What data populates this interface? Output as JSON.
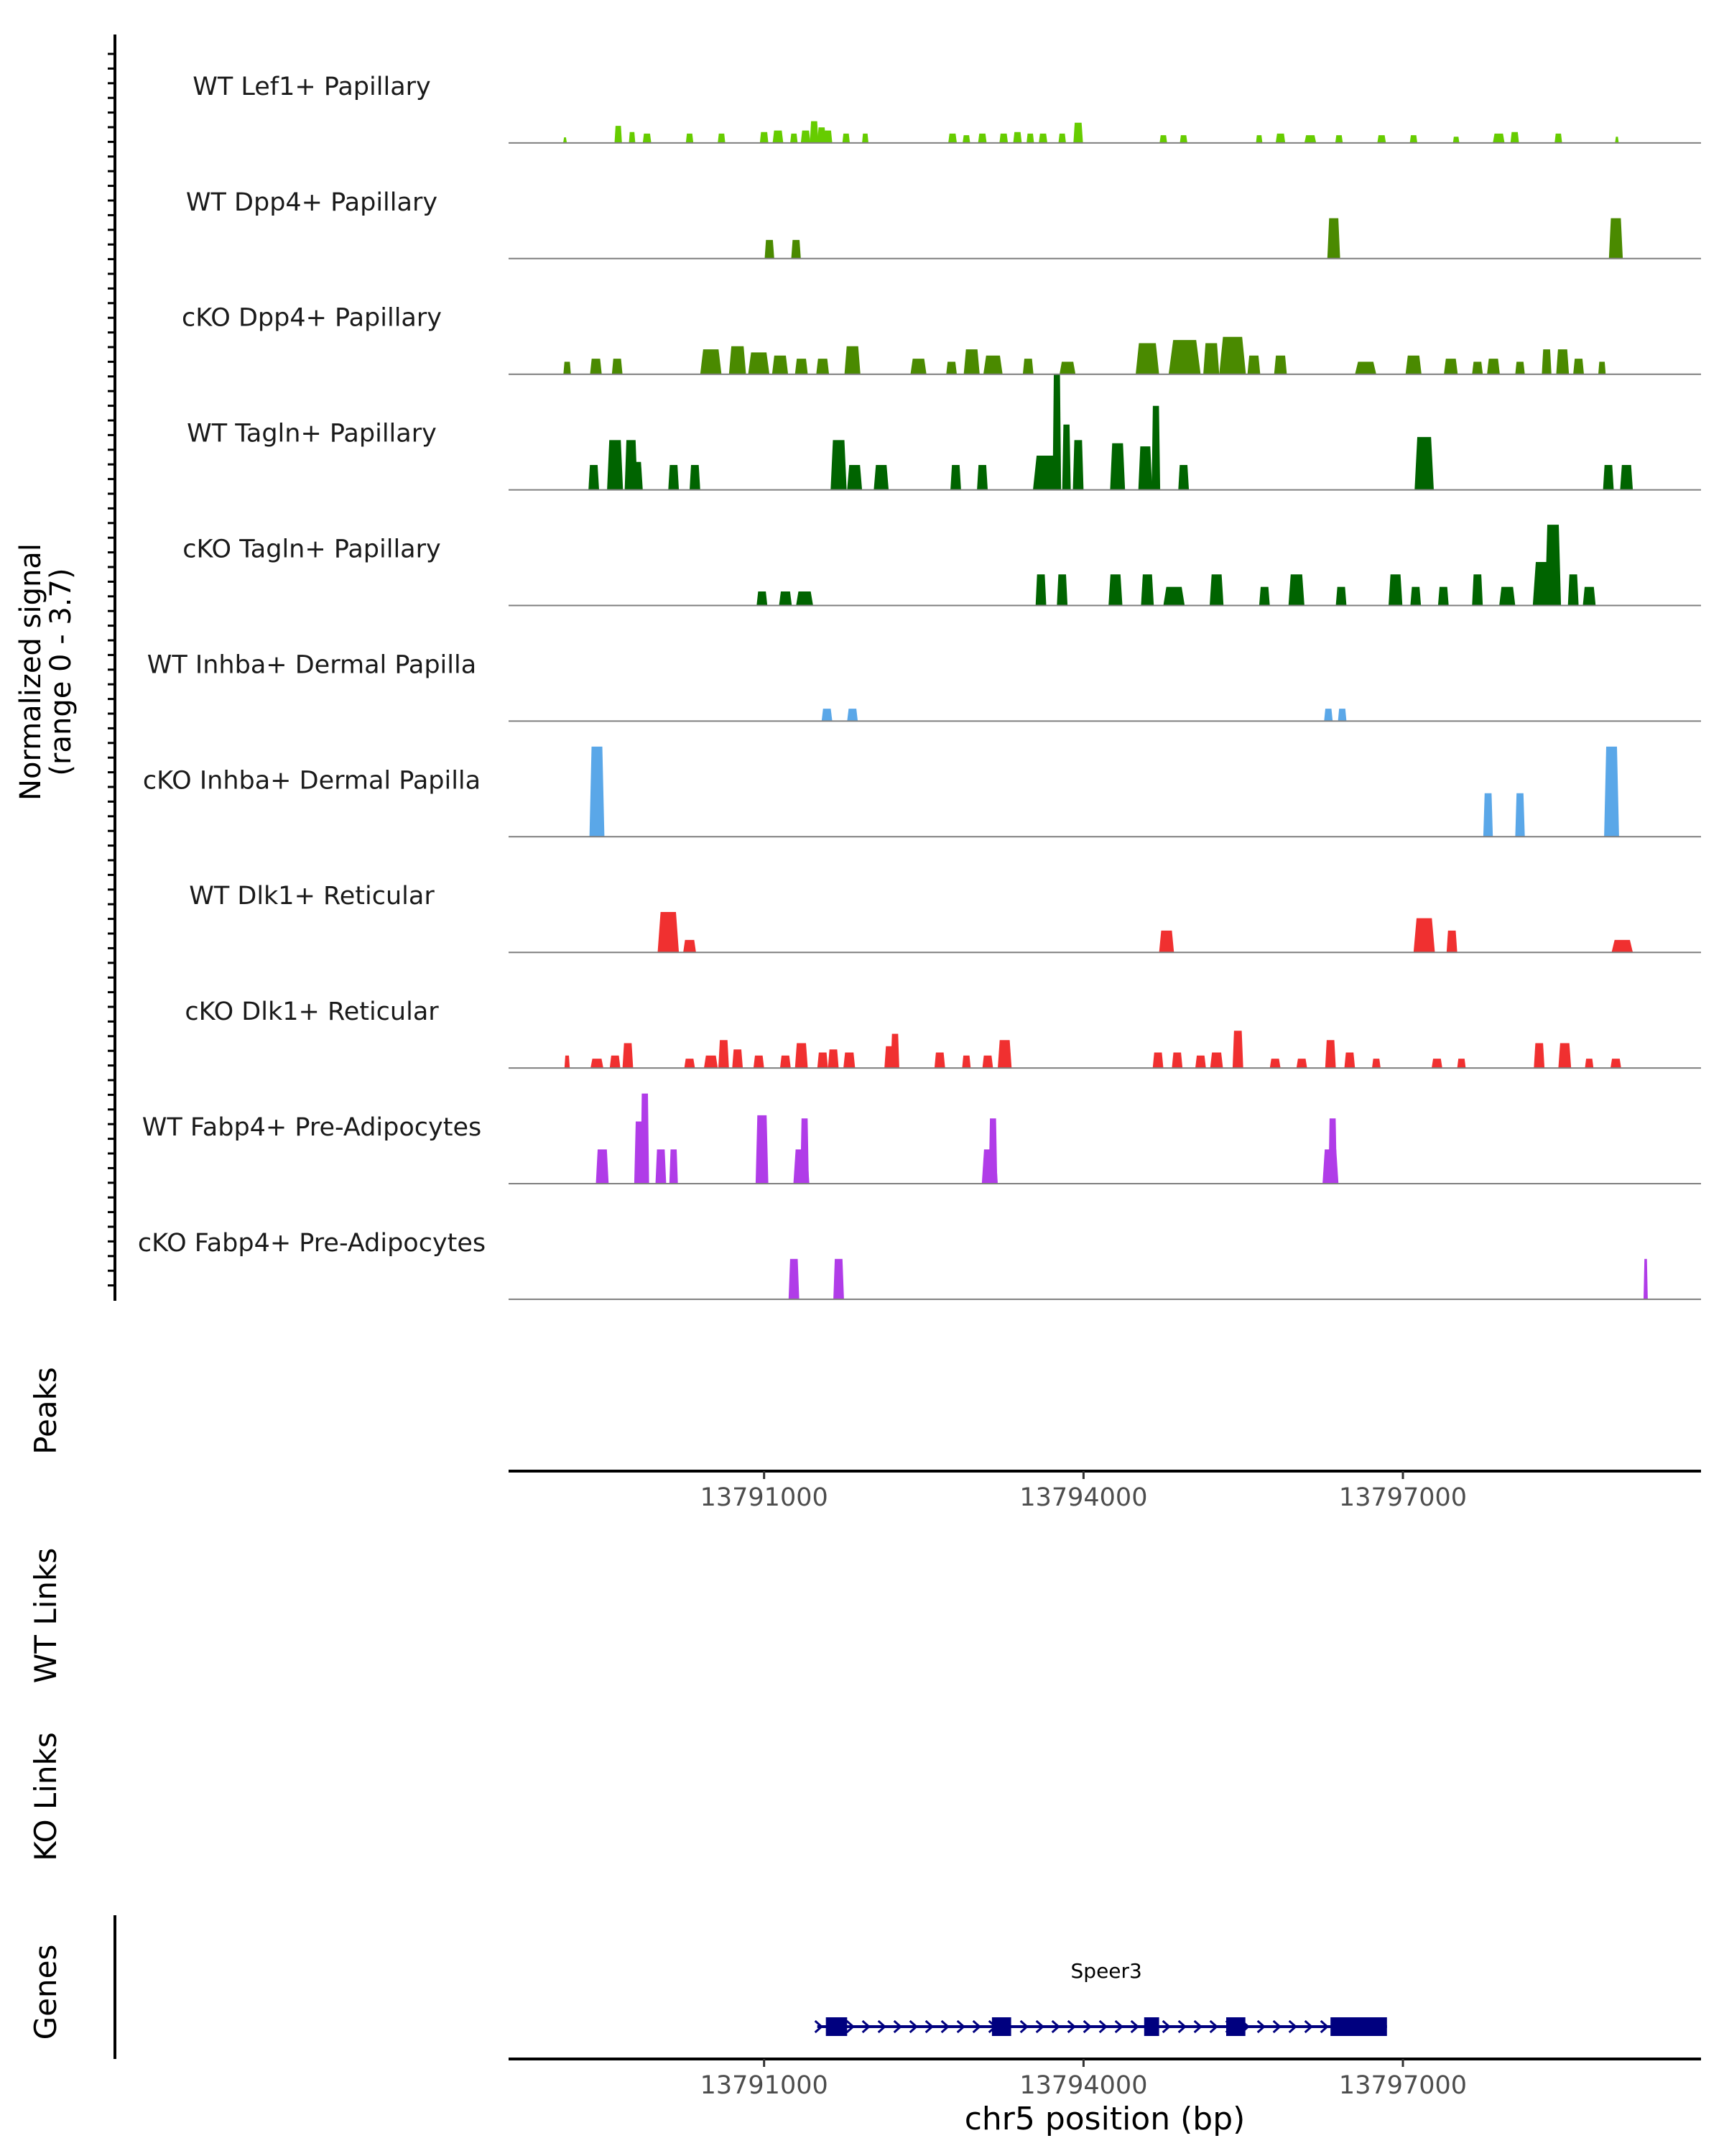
{
  "chart_data": {
    "type": "area",
    "title": "",
    "xlabel": "chr5 position (bp)",
    "xlim": [
      13788600,
      13799800
    ],
    "x_ticks": [
      13791000,
      13794000,
      13797000
    ],
    "x_tick_labels": [
      "13791000",
      "13794000",
      "13797000"
    ],
    "ylabel_line1": "Normalized signal",
    "ylabel_line2": "(range 0 - 3.7)",
    "ylim": [
      0,
      3.7
    ],
    "panel_labels": {
      "peaks": "Peaks",
      "wt_links": "WT Links",
      "ko_links": "KO Links",
      "genes": "Genes"
    },
    "colors": {
      "lime": "#66cc00",
      "olive": "#4a8a00",
      "dark_green": "#006400",
      "blue": "#5aa7e8",
      "red": "#f03030",
      "purple": "#b03ce8",
      "gene": "#00007f",
      "axis": "#000000",
      "baseline": "#7f7f7f"
    },
    "tracks": [
      {
        "name": "WT Lef1+ Papillary",
        "color": "#66cc00",
        "peaks": [
          [
            13789130,
            35,
            0.18
          ],
          [
            13789630,
            70,
            0.55
          ],
          [
            13789760,
            60,
            0.35
          ],
          [
            13789900,
            80,
            0.3
          ],
          [
            13790300,
            70,
            0.3
          ],
          [
            13790600,
            70,
            0.3
          ],
          [
            13791000,
            80,
            0.35
          ],
          [
            13791130,
            100,
            0.4
          ],
          [
            13791280,
            70,
            0.3
          ],
          [
            13791390,
            90,
            0.4
          ],
          [
            13791470,
            80,
            0.7
          ],
          [
            13791540,
            80,
            0.5
          ],
          [
            13791600,
            80,
            0.4
          ],
          [
            13791770,
            70,
            0.3
          ],
          [
            13791950,
            60,
            0.3
          ],
          [
            13792770,
            80,
            0.3
          ],
          [
            13792900,
            70,
            0.25
          ],
          [
            13793050,
            80,
            0.3
          ],
          [
            13793250,
            80,
            0.3
          ],
          [
            13793380,
            80,
            0.35
          ],
          [
            13793500,
            70,
            0.3
          ],
          [
            13793620,
            80,
            0.3
          ],
          [
            13793800,
            70,
            0.3
          ],
          [
            13793950,
            90,
            0.65
          ],
          [
            13794750,
            70,
            0.25
          ],
          [
            13794940,
            70,
            0.25
          ],
          [
            13795650,
            60,
            0.25
          ],
          [
            13795850,
            90,
            0.3
          ],
          [
            13796130,
            110,
            0.25
          ],
          [
            13796400,
            70,
            0.25
          ],
          [
            13796800,
            80,
            0.25
          ],
          [
            13797100,
            70,
            0.25
          ],
          [
            13797500,
            60,
            0.2
          ],
          [
            13797900,
            110,
            0.3
          ],
          [
            13798050,
            80,
            0.35
          ],
          [
            13798460,
            70,
            0.3
          ],
          [
            13799010,
            35,
            0.2
          ]
        ]
      },
      {
        "name": "WT Dpp4+ Papillary",
        "color": "#4a8a00",
        "peaks": [
          [
            13791050,
            90,
            0.6
          ],
          [
            13791300,
            90,
            0.6
          ],
          [
            13796350,
            120,
            1.3
          ],
          [
            13799000,
            130,
            1.3
          ]
        ]
      },
      {
        "name": "cKO Dpp4+ Papillary",
        "color": "#4a8a00",
        "peaks": [
          [
            13789150,
            70,
            0.4
          ],
          [
            13789420,
            110,
            0.5
          ],
          [
            13789620,
            100,
            0.5
          ],
          [
            13790500,
            200,
            0.8
          ],
          [
            13790750,
            160,
            0.9
          ],
          [
            13790950,
            200,
            0.7
          ],
          [
            13791150,
            150,
            0.6
          ],
          [
            13791350,
            120,
            0.5
          ],
          [
            13791550,
            120,
            0.5
          ],
          [
            13791830,
            150,
            0.9
          ],
          [
            13792450,
            150,
            0.5
          ],
          [
            13792760,
            100,
            0.4
          ],
          [
            13792950,
            150,
            0.8
          ],
          [
            13793150,
            180,
            0.6
          ],
          [
            13793480,
            100,
            0.5
          ],
          [
            13793850,
            150,
            0.4
          ],
          [
            13794600,
            220,
            1.0
          ],
          [
            13794950,
            300,
            1.1
          ],
          [
            13795200,
            150,
            1.0
          ],
          [
            13795400,
            250,
            1.2
          ],
          [
            13795600,
            120,
            0.6
          ],
          [
            13795850,
            120,
            0.6
          ],
          [
            13796650,
            200,
            0.4
          ],
          [
            13797100,
            150,
            0.6
          ],
          [
            13797450,
            130,
            0.5
          ],
          [
            13797700,
            100,
            0.4
          ],
          [
            13797850,
            120,
            0.5
          ],
          [
            13798100,
            90,
            0.4
          ],
          [
            13798350,
            90,
            0.8
          ],
          [
            13798500,
            120,
            0.8
          ],
          [
            13798650,
            100,
            0.5
          ],
          [
            13798870,
            70,
            0.4
          ]
        ]
      },
      {
        "name": "WT Tagln+ Papillary",
        "color": "#006400",
        "peaks": [
          [
            13789400,
            100,
            0.8
          ],
          [
            13789600,
            150,
            1.6
          ],
          [
            13789750,
            120,
            1.6
          ],
          [
            13789800,
            120,
            0.9
          ],
          [
            13790150,
            100,
            0.8
          ],
          [
            13790350,
            100,
            0.8
          ],
          [
            13791700,
            150,
            1.6
          ],
          [
            13791850,
            140,
            0.8
          ],
          [
            13792100,
            140,
            0.8
          ],
          [
            13792800,
            100,
            0.8
          ],
          [
            13793050,
            100,
            0.8
          ],
          [
            13793650,
            250,
            1.1
          ],
          [
            13793750,
            80,
            3.7
          ],
          [
            13793840,
            80,
            2.1
          ],
          [
            13793950,
            100,
            1.6
          ],
          [
            13794320,
            140,
            1.5
          ],
          [
            13794580,
            130,
            1.4
          ],
          [
            13794680,
            80,
            2.7
          ],
          [
            13794940,
            100,
            0.8
          ],
          [
            13797200,
            180,
            1.7
          ],
          [
            13798930,
            100,
            0.8
          ],
          [
            13799100,
            120,
            0.8
          ]
        ]
      },
      {
        "name": "cKO Tagln+ Papillary",
        "color": "#006400",
        "peaks": [
          [
            13790980,
            100,
            0.45
          ],
          [
            13791200,
            120,
            0.45
          ],
          [
            13791380,
            160,
            0.45
          ],
          [
            13793600,
            100,
            1.0
          ],
          [
            13793800,
            100,
            1.0
          ],
          [
            13794300,
            130,
            1.0
          ],
          [
            13794600,
            120,
            1.0
          ],
          [
            13794850,
            200,
            0.6
          ],
          [
            13795250,
            130,
            1.0
          ],
          [
            13795700,
            100,
            0.6
          ],
          [
            13796000,
            150,
            1.0
          ],
          [
            13796420,
            100,
            0.6
          ],
          [
            13796930,
            130,
            1.0
          ],
          [
            13797120,
            100,
            0.6
          ],
          [
            13797380,
            100,
            0.6
          ],
          [
            13797700,
            100,
            1.0
          ],
          [
            13797980,
            150,
            0.6
          ],
          [
            13798320,
            200,
            1.4
          ],
          [
            13798410,
            150,
            2.6
          ],
          [
            13798600,
            100,
            1.0
          ],
          [
            13798750,
            120,
            0.6
          ]
        ]
      },
      {
        "name": "WT Inhba+ Dermal Papilla",
        "color": "#5aa7e8",
        "peaks": [
          [
            13791590,
            100,
            0.4
          ],
          [
            13791830,
            100,
            0.4
          ],
          [
            13796300,
            80,
            0.4
          ],
          [
            13796430,
            80,
            0.4
          ]
        ]
      },
      {
        "name": "cKO Inhba+ Dermal Papilla",
        "color": "#5aa7e8",
        "peaks": [
          [
            13789430,
            140,
            2.9
          ],
          [
            13797800,
            90,
            1.4
          ],
          [
            13798100,
            90,
            1.4
          ],
          [
            13798960,
            140,
            2.9
          ]
        ]
      },
      {
        "name": "WT Dlk1+ Reticular",
        "color": "#f03030",
        "peaks": [
          [
            13790100,
            200,
            1.3
          ],
          [
            13790300,
            120,
            0.4
          ],
          [
            13794780,
            140,
            0.7
          ],
          [
            13797200,
            200,
            1.1
          ],
          [
            13797460,
            100,
            0.7
          ],
          [
            13799060,
            200,
            0.4
          ]
        ]
      },
      {
        "name": "cKO Dlk1+ Reticular",
        "color": "#f03030",
        "peaks": [
          [
            13789150,
            50,
            0.4
          ],
          [
            13789430,
            120,
            0.3
          ],
          [
            13789600,
            100,
            0.4
          ],
          [
            13789720,
            100,
            0.8
          ],
          [
            13790300,
            100,
            0.3
          ],
          [
            13790500,
            130,
            0.4
          ],
          [
            13790620,
            100,
            0.9
          ],
          [
            13790750,
            100,
            0.6
          ],
          [
            13790950,
            100,
            0.4
          ],
          [
            13791200,
            100,
            0.4
          ],
          [
            13791350,
            120,
            0.8
          ],
          [
            13791550,
            100,
            0.5
          ],
          [
            13791650,
            100,
            0.6
          ],
          [
            13791800,
            110,
            0.5
          ],
          [
            13792180,
            100,
            0.7
          ],
          [
            13792230,
            80,
            1.1
          ],
          [
            13792650,
            100,
            0.5
          ],
          [
            13792900,
            80,
            0.4
          ],
          [
            13793100,
            100,
            0.4
          ],
          [
            13793260,
            130,
            0.9
          ],
          [
            13794700,
            100,
            0.5
          ],
          [
            13794880,
            100,
            0.5
          ],
          [
            13795100,
            100,
            0.4
          ],
          [
            13795250,
            120,
            0.5
          ],
          [
            13795450,
            100,
            1.2
          ],
          [
            13795800,
            100,
            0.3
          ],
          [
            13796050,
            100,
            0.3
          ],
          [
            13796320,
            100,
            0.9
          ],
          [
            13796500,
            100,
            0.5
          ],
          [
            13796750,
            80,
            0.3
          ],
          [
            13797320,
            100,
            0.3
          ],
          [
            13797550,
            80,
            0.3
          ],
          [
            13798280,
            100,
            0.8
          ],
          [
            13798520,
            120,
            0.8
          ],
          [
            13798750,
            80,
            0.3
          ],
          [
            13799000,
            100,
            0.3
          ]
        ]
      },
      {
        "name": "WT Fabp4+ Pre-Adipocytes",
        "color": "#b03ce8",
        "peaks": [
          [
            13789480,
            120,
            1.1
          ],
          [
            13789830,
            100,
            2.0
          ],
          [
            13789880,
            80,
            2.9
          ],
          [
            13790030,
            100,
            1.1
          ],
          [
            13790150,
            80,
            1.1
          ],
          [
            13790980,
            120,
            2.2
          ],
          [
            13791350,
            150,
            1.1
          ],
          [
            13791380,
            80,
            2.1
          ],
          [
            13793120,
            150,
            1.1
          ],
          [
            13793150,
            80,
            2.1
          ],
          [
            13796320,
            150,
            1.1
          ],
          [
            13796340,
            80,
            2.1
          ]
        ]
      },
      {
        "name": "cKO Fabp4+ Pre-Adipocytes",
        "color": "#b03ce8",
        "peaks": [
          [
            13791280,
            100,
            1.3
          ],
          [
            13791700,
            100,
            1.3
          ],
          [
            13799280,
            40,
            1.3
          ]
        ]
      }
    ],
    "peaks_track": [],
    "wt_links": [],
    "ko_links": [],
    "genes": [
      {
        "name": "Speer3",
        "start": 13791580,
        "end": 13796850,
        "strand": "+",
        "exons": [
          [
            13791580,
            13791780
          ],
          [
            13793140,
            13793320
          ],
          [
            13794570,
            13794710
          ],
          [
            13795340,
            13795520
          ],
          [
            13796320,
            13796850
          ]
        ]
      }
    ]
  }
}
